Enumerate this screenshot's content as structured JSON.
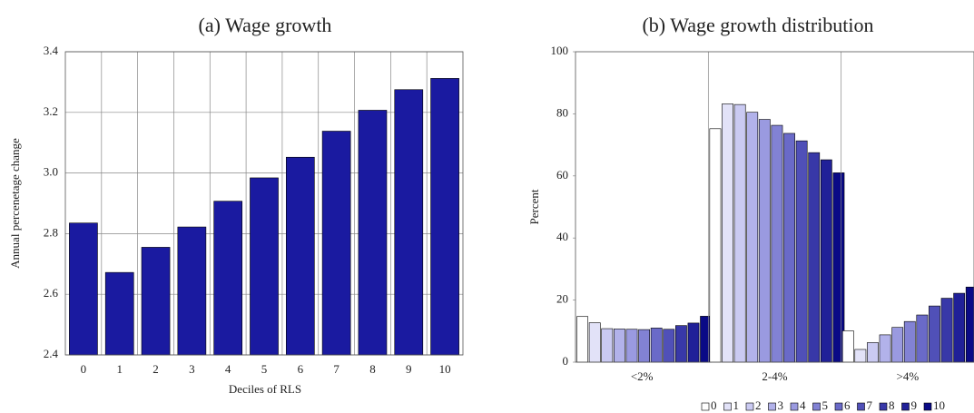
{
  "chart_data": [
    {
      "type": "bar",
      "title": "(a) Wage growth",
      "x_label": "Deciles of RLS",
      "y_label": "Annual percenetage change",
      "categories": [
        "0",
        "1",
        "2",
        "3",
        "4",
        "5",
        "6",
        "7",
        "8",
        "9",
        "10"
      ],
      "values": [
        2.835,
        2.672,
        2.755,
        2.822,
        2.907,
        2.984,
        3.052,
        3.138,
        3.207,
        3.275,
        3.312
      ],
      "color": "#1a1aa0",
      "ylim": [
        2.4,
        3.4
      ],
      "yticks": [
        2.4,
        2.6,
        2.8,
        {
          "value": 3,
          "label": "3.0"
        },
        3.2,
        3.4
      ],
      "grid": true
    },
    {
      "type": "grouped_bar",
      "title": "(b) Wage growth distribution",
      "y_label": "Percent",
      "categories": [
        "<2%",
        "2-4%",
        ">4%"
      ],
      "series": [
        {
          "name": "0",
          "color": "#ffffff",
          "values": [
            14.7,
            75.2,
            10.1
          ]
        },
        {
          "name": "1",
          "color": "#e2e2f8",
          "values": [
            12.7,
            83.2,
            4.1
          ]
        },
        {
          "name": "2",
          "color": "#cacaf2",
          "values": [
            10.8,
            83.0,
            6.3
          ]
        },
        {
          "name": "3",
          "color": "#b2b2ea",
          "values": [
            10.7,
            80.5,
            8.8
          ]
        },
        {
          "name": "4",
          "color": "#9a9ae0",
          "values": [
            10.6,
            78.2,
            11.2
          ]
        },
        {
          "name": "5",
          "color": "#8282d4",
          "values": [
            10.5,
            76.3,
            13.1
          ]
        },
        {
          "name": "6",
          "color": "#6a6ac8",
          "values": [
            11.0,
            73.7,
            15.2
          ]
        },
        {
          "name": "7",
          "color": "#5050b8",
          "values": [
            10.6,
            71.3,
            18.1
          ]
        },
        {
          "name": "8",
          "color": "#3838a8",
          "values": [
            11.8,
            67.5,
            20.6
          ]
        },
        {
          "name": "9",
          "color": "#202098",
          "values": [
            12.6,
            65.2,
            22.2
          ]
        },
        {
          "name": "10",
          "color": "#0a0a86",
          "values": [
            14.8,
            61.0,
            24.2
          ]
        }
      ],
      "ylim": [
        0,
        100
      ],
      "yticks": [
        0,
        20,
        40,
        60,
        80,
        100
      ],
      "grid": false,
      "legend": "bottom"
    }
  ]
}
